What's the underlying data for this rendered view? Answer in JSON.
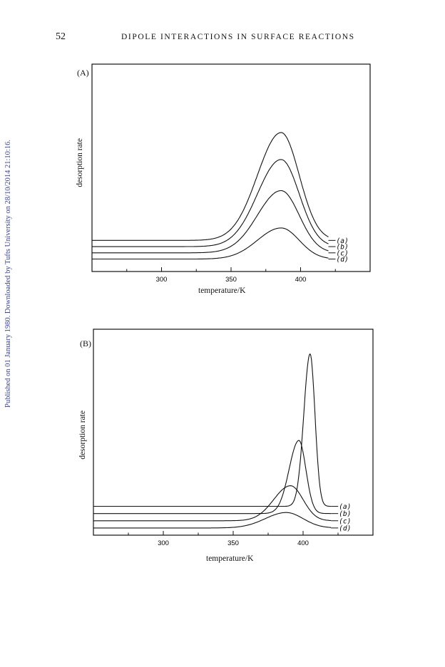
{
  "header": {
    "page_number": "52",
    "running_title": "DIPOLE INTERACTIONS IN SURFACE REACTIONS"
  },
  "watermark": "Published on 01 January 1980. Downloaded by Tufts University on 28/10/2014 21:10:16.",
  "chart_data": [
    {
      "type": "line",
      "panel_label": "(A)",
      "xlabel": "temperature/K",
      "ylabel": "desorption rate",
      "xlim": [
        250,
        450
      ],
      "ylim": [
        0,
        1
      ],
      "x_ticks": [
        300,
        350,
        400
      ],
      "grid": false,
      "legend": "inline labels at right end of curves",
      "series": [
        {
          "name": "(a)",
          "baseline": 0.15,
          "peak_x": 386,
          "peak_y": 0.67,
          "width_low": 17,
          "width_high": 13,
          "end_x": 420
        },
        {
          "name": "(b)",
          "baseline": 0.12,
          "peak_x": 386,
          "peak_y": 0.54,
          "width_low": 17,
          "width_high": 13,
          "end_x": 420
        },
        {
          "name": "(c)",
          "baseline": 0.09,
          "peak_x": 386,
          "peak_y": 0.39,
          "width_low": 17,
          "width_high": 13,
          "end_x": 420
        },
        {
          "name": "(d)",
          "baseline": 0.06,
          "peak_x": 386,
          "peak_y": 0.21,
          "width_low": 17,
          "width_high": 13,
          "end_x": 420
        }
      ]
    },
    {
      "type": "line",
      "panel_label": "(B)",
      "xlabel": "temperature/K",
      "ylabel": "desorption rate",
      "xlim": [
        250,
        450
      ],
      "ylim": [
        0,
        1
      ],
      "x_ticks": [
        300,
        350,
        400
      ],
      "grid": false,
      "legend": "inline labels at right end of curves",
      "series": [
        {
          "name": "(a)",
          "baseline": 0.14,
          "peak_x": 405,
          "peak_y": 0.88,
          "width_low": 4.5,
          "width_high": 3.5,
          "end_x": 420
        },
        {
          "name": "(b)",
          "baseline": 0.105,
          "peak_x": 397,
          "peak_y": 0.46,
          "width_low": 7,
          "width_high": 5,
          "end_x": 420
        },
        {
          "name": "(c)",
          "baseline": 0.07,
          "peak_x": 391,
          "peak_y": 0.24,
          "width_low": 12,
          "width_high": 9,
          "end_x": 420
        },
        {
          "name": "(d)",
          "baseline": 0.035,
          "peak_x": 388,
          "peak_y": 0.11,
          "width_low": 15,
          "width_high": 12,
          "end_x": 420
        }
      ]
    }
  ]
}
